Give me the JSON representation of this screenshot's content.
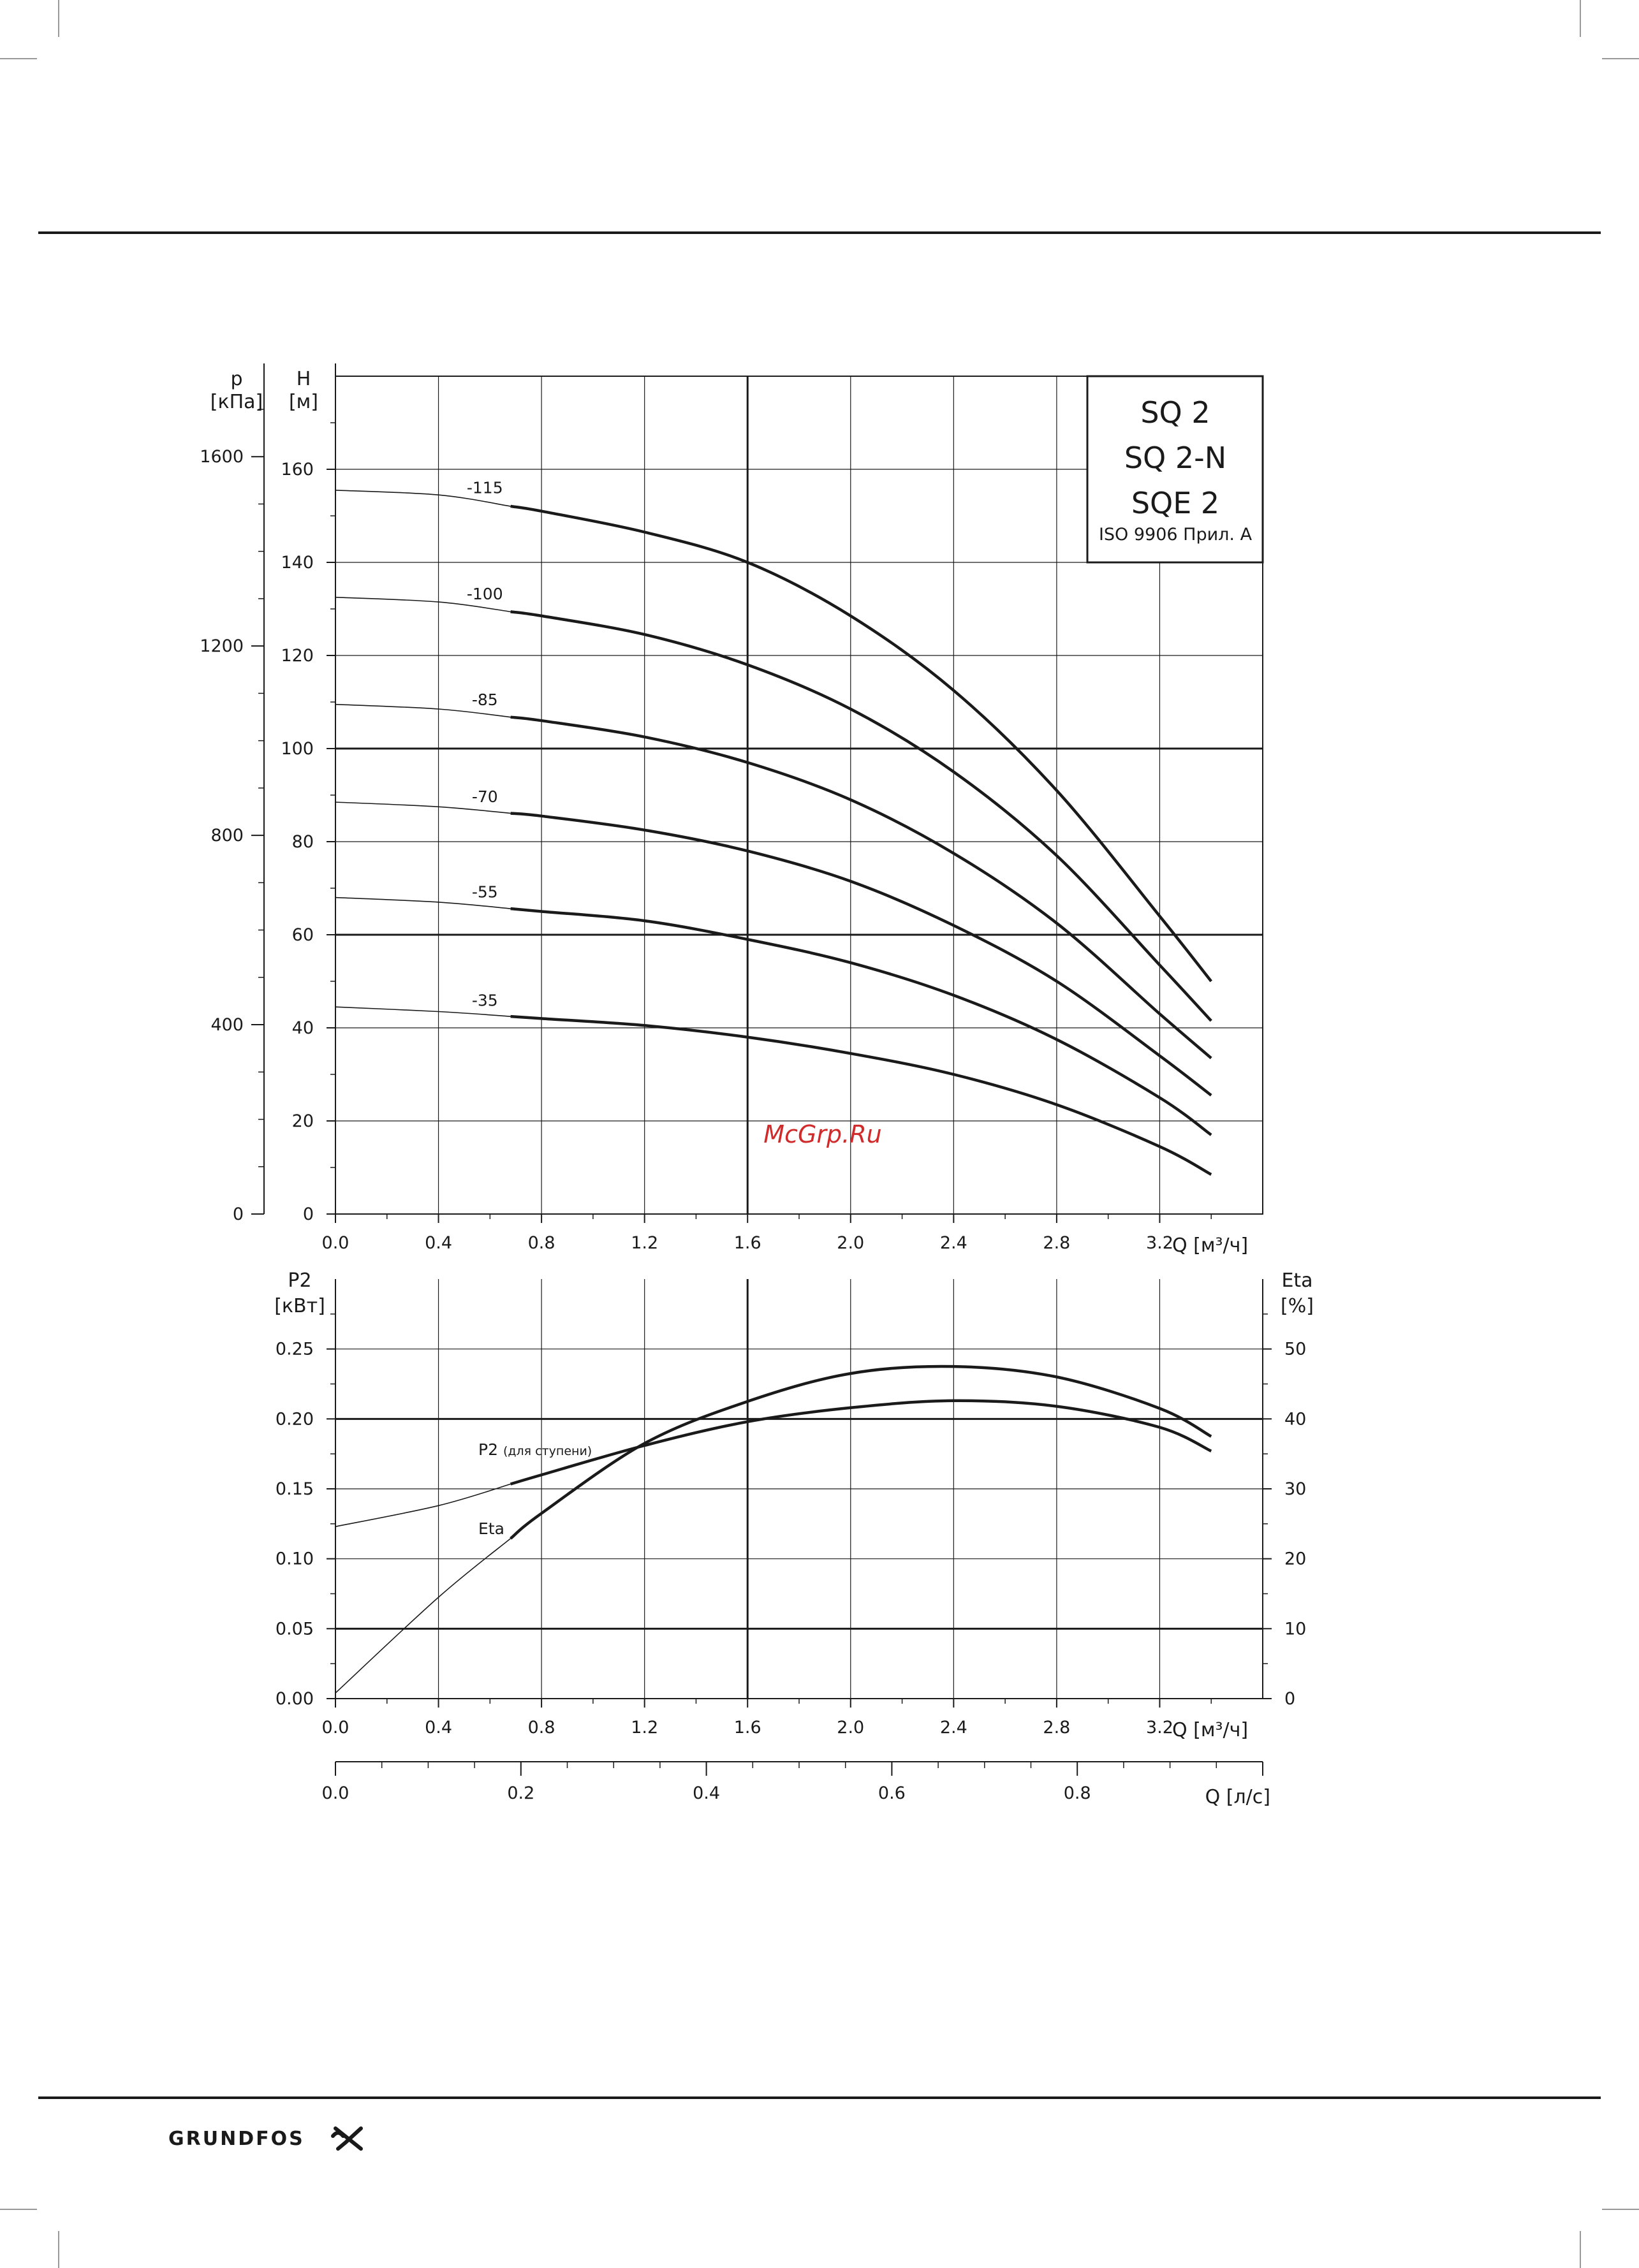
{
  "header_rule": true,
  "watermark": "McGrp.Ru",
  "footer": {
    "logo_text": "GRUNDFOS",
    "logo_mark": "grundfos-x-mark-icon"
  },
  "legend_box": {
    "lines": [
      "SQ 2",
      "SQ 2-N",
      "SQE 2"
    ],
    "note": "ISO 9906 Прил.  A"
  },
  "chart_data": [
    {
      "type": "line",
      "title": "",
      "y_left_outer": {
        "label_line1": "p",
        "label_line2": "[кПа]",
        "ticks": [
          "0",
          "400",
          "800",
          "1200",
          "1600"
        ],
        "range": [
          0,
          1770
        ]
      },
      "y_left": {
        "label_line1": "H",
        "label_line2": "[м]",
        "ticks": [
          "0",
          "20",
          "40",
          "60",
          "80",
          "100",
          "120",
          "140",
          "160"
        ],
        "range": [
          0,
          180
        ]
      },
      "x": {
        "label": "Q [м³/ч]",
        "ticks": [
          "0.0",
          "0.4",
          "0.8",
          "1.2",
          "1.6",
          "2.0",
          "2.4",
          "2.8",
          "3.2"
        ],
        "range": [
          0,
          3.6
        ]
      },
      "grid": true,
      "x_values": [
        0.0,
        0.4,
        0.8,
        1.2,
        1.6,
        2.0,
        2.4,
        2.8,
        3.2,
        3.4
      ],
      "series": [
        {
          "name": "-115",
          "thin_until": 0.68,
          "values": [
            155.5,
            154.5,
            151,
            146.5,
            140,
            128.5,
            112.5,
            91,
            64,
            50
          ]
        },
        {
          "name": "-100",
          "thin_until": 0.68,
          "values": [
            132.5,
            131.5,
            128.5,
            124.5,
            118,
            108.5,
            95,
            77,
            53.5,
            41.5
          ]
        },
        {
          "name": "-85",
          "thin_until": 0.68,
          "values": [
            109.5,
            108.5,
            106,
            102.5,
            97,
            89,
            77.5,
            62.5,
            43,
            33.5
          ]
        },
        {
          "name": "-70",
          "thin_until": 0.68,
          "values": [
            88.5,
            87.5,
            85.5,
            82.5,
            78,
            71.5,
            62,
            50,
            34,
            25.5
          ]
        },
        {
          "name": "-55",
          "thin_until": 0.68,
          "values": [
            68,
            67,
            65,
            63,
            59,
            54,
            47,
            37.5,
            25,
            17
          ]
        },
        {
          "name": "-35",
          "thin_until": 0.68,
          "values": [
            44.5,
            43.5,
            42,
            40.5,
            38,
            34.5,
            30,
            23.5,
            14.5,
            8.5
          ]
        }
      ]
    },
    {
      "type": "line",
      "title": "",
      "y_left": {
        "label_line1": "P2",
        "label_line2": "[кВт]",
        "ticks": [
          "0.00",
          "0.05",
          "0.10",
          "0.15",
          "0.20",
          "0.25"
        ],
        "range": [
          0,
          0.3
        ]
      },
      "y_right": {
        "label_line1": "Eta",
        "label_line2": "[%]",
        "ticks": [
          "0",
          "10",
          "20",
          "30",
          "40",
          "50"
        ],
        "range": [
          0,
          60
        ]
      },
      "x": {
        "label": "Q [м³/ч]",
        "ticks": [
          "0.0",
          "0.4",
          "0.8",
          "1.2",
          "1.6",
          "2.0",
          "2.4",
          "2.8",
          "3.2"
        ],
        "range": [
          0,
          3.6
        ]
      },
      "grid": true,
      "x_values": [
        0.0,
        0.4,
        0.8,
        1.2,
        1.6,
        2.0,
        2.4,
        2.8,
        3.2,
        3.4
      ],
      "series": [
        {
          "name": "P2",
          "label_suffix": "(для ступени)",
          "axis": "left",
          "thin_until": 0.68,
          "values": [
            0.123,
            0.138,
            0.16,
            0.181,
            0.198,
            0.208,
            0.213,
            0.209,
            0.194,
            0.177
          ]
        },
        {
          "name": "Eta",
          "axis": "right",
          "thin_until": 0.68,
          "values": [
            0.8,
            14.5,
            26.5,
            36.5,
            42.5,
            46.5,
            47.5,
            46,
            41.5,
            37.5
          ]
        }
      ]
    },
    {
      "type": "axis",
      "x": {
        "label": "Q [л/с]",
        "ticks": [
          "0.0",
          "0.2",
          "0.4",
          "0.6",
          "0.8"
        ],
        "range": [
          0,
          1.0
        ]
      }
    }
  ]
}
